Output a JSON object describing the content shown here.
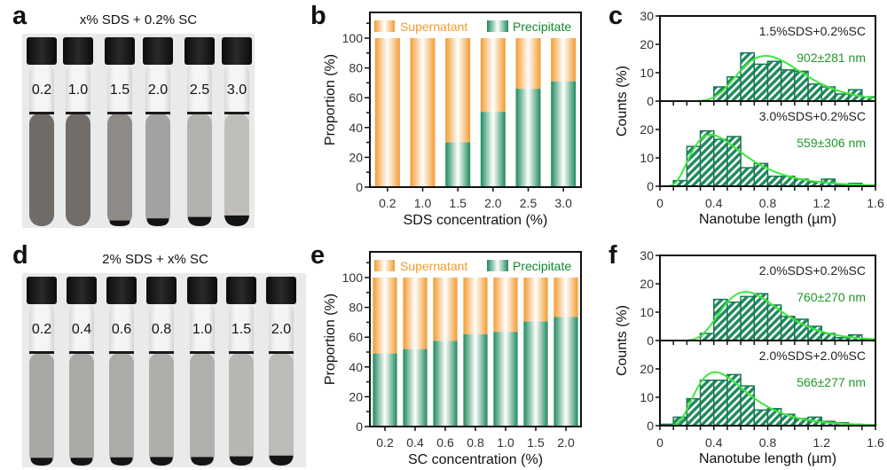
{
  "panels": {
    "a": {
      "letter": "a",
      "title": "x% SDS + 0.2% SC",
      "tubes": [
        {
          "label": "0.2",
          "liquid_color": "#6f6b67",
          "pellet": 0
        },
        {
          "label": "1.0",
          "liquid_color": "#726d69",
          "pellet": 0
        },
        {
          "label": "1.5",
          "liquid_color": "#8e8b87",
          "pellet": 0.3
        },
        {
          "label": "2.0",
          "liquid_color": "#a4a2a0",
          "pellet": 0.6
        },
        {
          "label": "2.5",
          "liquid_color": "#b4b2af",
          "pellet": 0.8
        },
        {
          "label": "3.0",
          "liquid_color": "#c0beba",
          "pellet": 1
        }
      ]
    },
    "d": {
      "letter": "d",
      "title": "2% SDS + x% SC",
      "tubes": [
        {
          "label": "0.2",
          "liquid_color": "#a9a7a4",
          "pellet": 0.6
        },
        {
          "label": "0.4",
          "liquid_color": "#aba9a6",
          "pellet": 0.6
        },
        {
          "label": "0.6",
          "liquid_color": "#adaba8",
          "pellet": 0.65
        },
        {
          "label": "0.8",
          "liquid_color": "#b0aeab",
          "pellet": 0.7
        },
        {
          "label": "1.0",
          "liquid_color": "#b2b0ad",
          "pellet": 0.7
        },
        {
          "label": "1.5",
          "liquid_color": "#b8b6b3",
          "pellet": 0.8
        },
        {
          "label": "2.0",
          "liquid_color": "#bdbbb8",
          "pellet": 0.9
        }
      ]
    },
    "b": {
      "letter": "b"
    },
    "c": {
      "letter": "c"
    },
    "e": {
      "letter": "e"
    },
    "f": {
      "letter": "f"
    }
  },
  "colors": {
    "supernatant": "#f39b30",
    "precipitate": "#1f8a5e",
    "hist_edge": "#17784f",
    "fit": "#3ee83e",
    "mean_text": "#1f9a2a"
  },
  "chart_data": [
    {
      "id": "b",
      "type": "bar",
      "stacked": true,
      "categories": [
        "0.2",
        "1.0",
        "1.5",
        "2.0",
        "2.5",
        "3.0"
      ],
      "series": [
        {
          "name": "Supernatant",
          "values": [
            100,
            100,
            70,
            49.5,
            34,
            29
          ]
        },
        {
          "name": "Precipitate",
          "values": [
            0,
            0,
            30,
            50.5,
            66,
            71
          ]
        }
      ],
      "xlabel": "SDS concentration (%)",
      "ylabel": "Proportion (%)",
      "ylim": [
        0,
        112
      ],
      "yticks": [
        "0",
        "20",
        "40",
        "60",
        "80",
        "100"
      ],
      "legend": "top"
    },
    {
      "id": "e",
      "type": "bar",
      "stacked": true,
      "categories": [
        "0.2",
        "0.4",
        "0.6",
        "0.8",
        "1.0",
        "1.5",
        "2.0"
      ],
      "series": [
        {
          "name": "Supernatant",
          "values": [
            51,
            48,
            42.5,
            38,
            36.5,
            29.5,
            26.5
          ]
        },
        {
          "name": "Precipitate",
          "values": [
            49,
            52,
            57.5,
            62,
            63.5,
            70.5,
            73.5
          ]
        }
      ],
      "xlabel": "SC concentration (%)",
      "ylabel": "Proportion (%)",
      "ylim": [
        0,
        112
      ],
      "yticks": [
        "0",
        "20",
        "40",
        "60",
        "80",
        "100"
      ],
      "legend": "top"
    },
    {
      "id": "c",
      "type": "bar",
      "subtype": "histogram",
      "xlabel": "Nanotube length (µm)",
      "ylabel": "Counts (%)",
      "xlim": [
        0,
        1.6
      ],
      "xticks": [
        "0",
        "0.4",
        "0.8",
        "1.2",
        "1.6"
      ],
      "bin_width": 0.1,
      "subplots": [
        {
          "label": "1.5%SDS+0.2%SC",
          "mean": 0.902,
          "std": 0.281,
          "annotation": "902±281 nm",
          "ylim": [
            0,
            30
          ],
          "yticks": [
            "0",
            "10",
            "20",
            "30"
          ],
          "values": [
            0,
            0,
            0,
            0,
            5,
            8.5,
            17,
            13,
            14,
            11,
            10.5,
            6,
            5,
            2.5,
            4,
            1.5
          ]
        },
        {
          "label": "3.0%SDS+0.2%SC",
          "mean": 0.559,
          "std": 0.306,
          "annotation": "559±306 nm",
          "ylim": [
            0,
            30
          ],
          "yticks": [
            "0",
            "10",
            "20"
          ],
          "values": [
            0,
            2,
            14,
            19.5,
            16.5,
            17.5,
            6.5,
            8,
            3.5,
            3.5,
            2.5,
            1.5,
            2.5,
            0.5,
            1,
            0.3
          ]
        }
      ]
    },
    {
      "id": "f",
      "type": "bar",
      "subtype": "histogram",
      "xlabel": "Nanotube length (µm)",
      "ylabel": "Counts (%)",
      "xlim": [
        0,
        1.6
      ],
      "xticks": [
        "0",
        "0.4",
        "0.8",
        "1.2",
        "1.6"
      ],
      "bin_width": 0.1,
      "subplots": [
        {
          "label": "2.0%SDS+0.2%SC",
          "mean": 0.76,
          "std": 0.27,
          "annotation": "760±270 nm",
          "ylim": [
            0,
            30
          ],
          "yticks": [
            "0",
            "10",
            "20",
            "30"
          ],
          "values": [
            0,
            0,
            0,
            2.5,
            14.5,
            13.5,
            15.5,
            16.5,
            12.5,
            8.5,
            7.5,
            5,
            2.5,
            1,
            2,
            0.5
          ]
        },
        {
          "label": "2.0%SDS+2.0%SC",
          "mean": 0.566,
          "std": 0.277,
          "annotation": "566±277 nm",
          "ylim": [
            0,
            30
          ],
          "yticks": [
            "0",
            "10",
            "20"
          ],
          "values": [
            0.5,
            3,
            9.5,
            16,
            16,
            18,
            14,
            5.5,
            6,
            4,
            2.5,
            3,
            1.5,
            1,
            0.5,
            0.3
          ]
        }
      ]
    }
  ]
}
